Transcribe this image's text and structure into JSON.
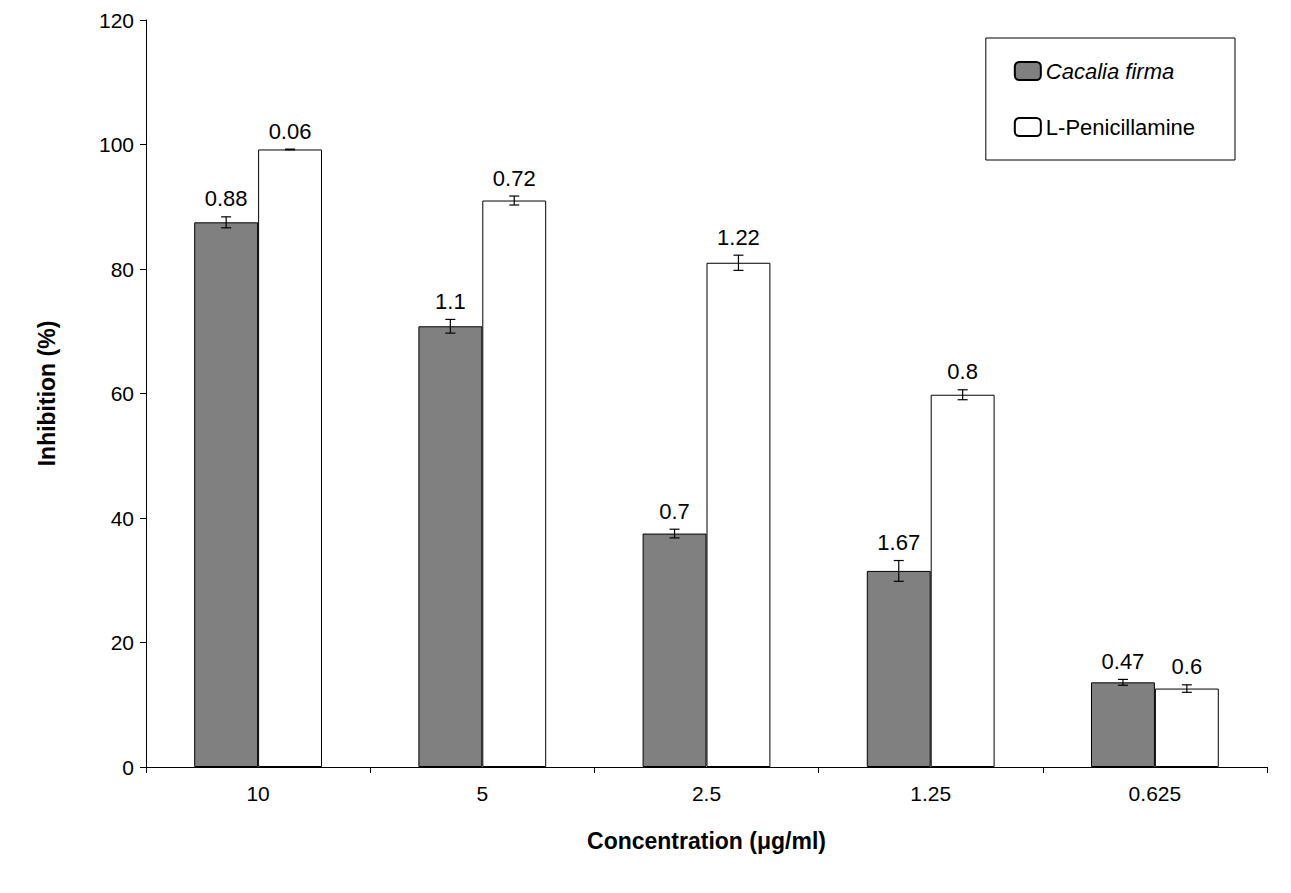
{
  "chart_data": {
    "type": "bar",
    "x_label": "Concentration (μg/ml)",
    "y_label": "Inhibition (%)",
    "categories": [
      "10",
      "5",
      "2.5",
      "1.25",
      "0.625"
    ],
    "series": [
      {
        "name": "Cacalia firma",
        "color": "#808080",
        "values": [
          87.5,
          70.8,
          37.5,
          31.5,
          13.6
        ],
        "errors": [
          0.88,
          1.1,
          0.7,
          1.67,
          0.47
        ]
      },
      {
        "name": "L-Penicillamine",
        "color": "#ffffff",
        "values": [
          99.2,
          91.0,
          81.0,
          59.8,
          12.6
        ],
        "errors": [
          0.06,
          0.72,
          1.22,
          0.8,
          0.6
        ]
      }
    ],
    "ylim": [
      0,
      120
    ],
    "yticks": [
      0,
      20,
      40,
      60,
      80,
      100,
      120
    ],
    "grid": false,
    "legend": "top-right"
  }
}
